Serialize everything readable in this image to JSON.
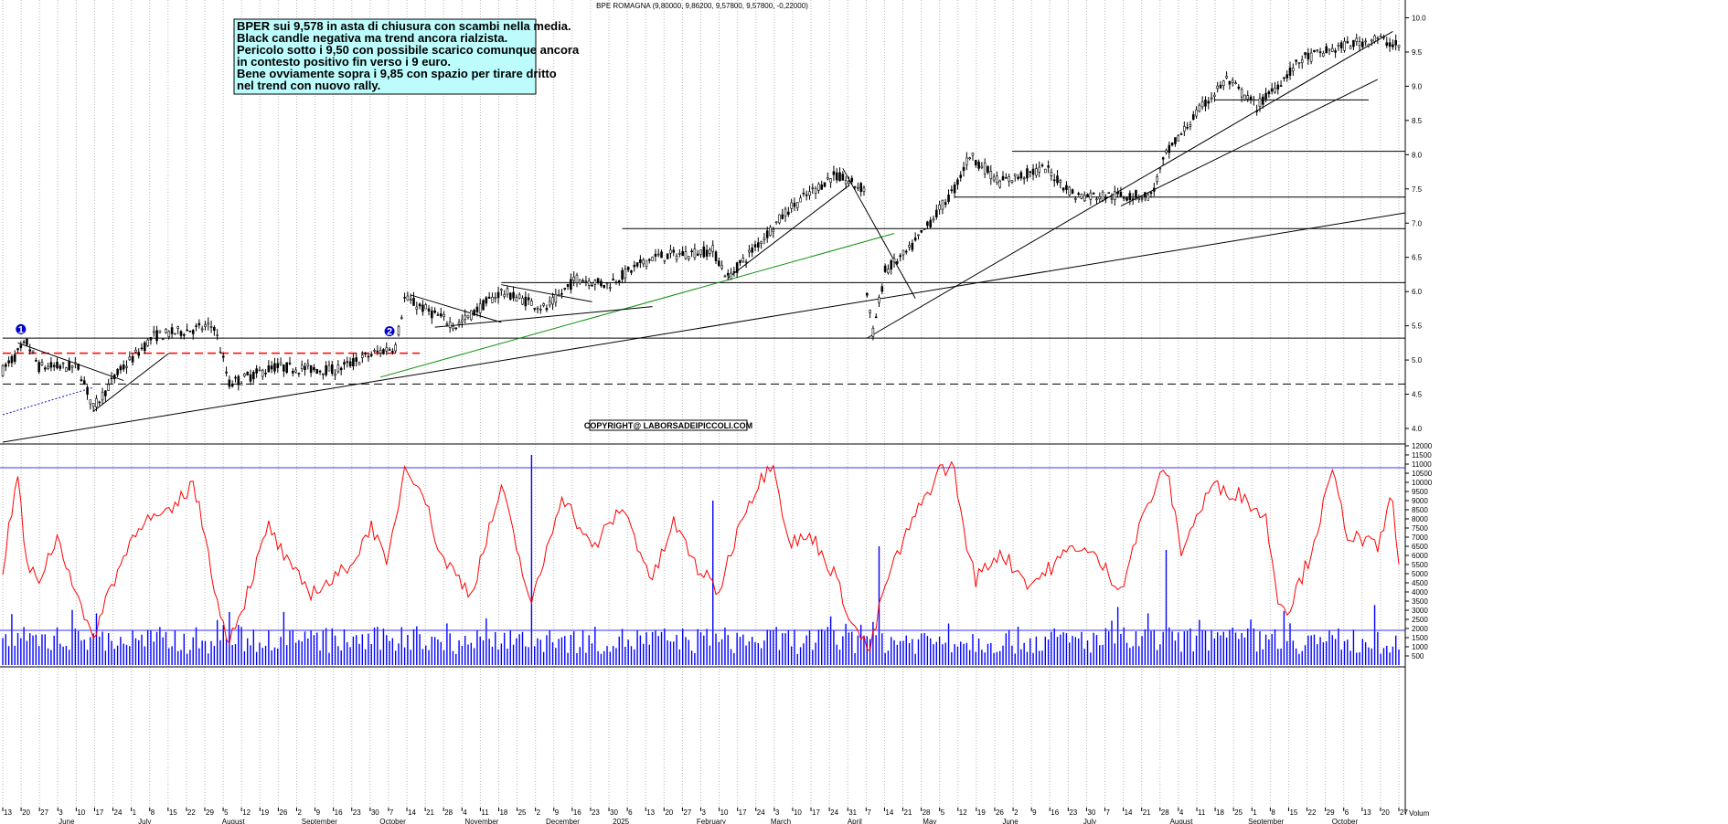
{
  "chart_data": [
    {
      "type": "candlestick",
      "title": "BPE ROMAGNA (9,80000, 9,86200, 9,57800, 9,57800, -0,22000)",
      "ylim": [
        3.8,
        10.1
      ],
      "y_ticks": [
        "4.0",
        "4.5",
        "5.0",
        "5.5",
        "6.0",
        "6.5",
        "7.0",
        "7.5",
        "8.0",
        "8.5",
        "9.0",
        "9.5",
        "10.0"
      ],
      "grid": "vertical dotted",
      "price_path": [
        [
          0,
          4.85
        ],
        [
          8,
          5.25
        ],
        [
          12,
          4.9
        ],
        [
          25,
          4.9
        ],
        [
          30,
          4.3
        ],
        [
          38,
          4.8
        ],
        [
          50,
          5.35
        ],
        [
          70,
          5.5
        ],
        [
          75,
          4.65
        ],
        [
          90,
          4.9
        ],
        [
          110,
          4.85
        ],
        [
          123,
          5.1
        ],
        [
          130,
          5.2
        ],
        [
          133,
          5.9
        ],
        [
          150,
          5.5
        ],
        [
          165,
          6.0
        ],
        [
          180,
          5.75
        ],
        [
          190,
          6.2
        ],
        [
          200,
          6.1
        ],
        [
          215,
          6.5
        ],
        [
          235,
          6.6
        ],
        [
          240,
          6.2
        ],
        [
          260,
          7.2
        ],
        [
          275,
          7.7
        ],
        [
          285,
          7.5
        ],
        [
          280,
          7.7
        ],
        [
          288,
          5.4
        ],
        [
          292,
          6.3
        ],
        [
          300,
          6.6
        ],
        [
          315,
          7.5
        ],
        [
          320,
          8.0
        ],
        [
          330,
          7.6
        ],
        [
          345,
          7.8
        ],
        [
          355,
          7.4
        ],
        [
          380,
          7.4
        ],
        [
          385,
          8.0
        ],
        [
          395,
          8.6
        ],
        [
          405,
          9.1
        ],
        [
          415,
          8.7
        ],
        [
          430,
          9.4
        ],
        [
          445,
          9.6
        ],
        [
          455,
          9.7
        ],
        [
          462,
          9.58
        ]
      ],
      "n_bars": 463,
      "overlays": {
        "horizontal_levels": [
          {
            "y": 5.1,
            "style": "red-dashed"
          },
          {
            "y": 4.65,
            "style": "black-dashed"
          },
          {
            "y": 5.32,
            "style": "black"
          },
          {
            "y": 6.13,
            "style": "black"
          },
          {
            "y": 6.92,
            "style": "black"
          },
          {
            "y": 7.38,
            "style": "black"
          },
          {
            "y": 8.05,
            "style": "black"
          },
          {
            "y": 8.8,
            "style": "black"
          }
        ],
        "trendlines": [
          {
            "p1": [
              0,
              3.8
            ],
            "p2": [
              463,
              7.15
            ],
            "color": "black"
          },
          {
            "p1": [
              125,
              4.75
            ],
            "p2": [
              295,
              6.85
            ],
            "color": "green"
          },
          {
            "p1": [
              0,
              4.2
            ],
            "p2": [
              30,
              4.6
            ],
            "color": "blue-dotted"
          },
          {
            "p1": [
              5,
              5.25
            ],
            "p2": [
              40,
              4.7
            ],
            "color": "black"
          },
          {
            "p1": [
              30,
              4.25
            ],
            "p2": [
              55,
              5.1
            ],
            "color": "black"
          },
          {
            "p1": [
              135,
              5.95
            ],
            "p2": [
              165,
              5.55
            ],
            "color": "black"
          },
          {
            "p1": [
              143,
              5.48
            ],
            "p2": [
              215,
              5.78
            ],
            "color": "black"
          },
          {
            "p1": [
              165,
              6.1
            ],
            "p2": [
              195,
              5.85
            ],
            "color": "black"
          },
          {
            "p1": [
              240,
              6.2
            ],
            "p2": [
              280,
              7.55
            ],
            "color": "black"
          },
          {
            "p1": [
              278,
              7.8
            ],
            "p2": [
              302,
              5.9
            ],
            "color": "black"
          },
          {
            "p1": [
              286,
              5.32
            ],
            "p2": [
              460,
              9.8
            ],
            "color": "black"
          },
          {
            "p1": [
              370,
              7.25
            ],
            "p2": [
              455,
              9.1
            ],
            "color": "black"
          }
        ],
        "markers": [
          {
            "label": "1",
            "x": 6,
            "y": 5.45
          },
          {
            "label": "2",
            "x": 128,
            "y": 5.42
          }
        ]
      }
    },
    {
      "type": "bar+line",
      "ylim": [
        0,
        12000
      ],
      "y_ticks": [
        "500",
        "1000",
        "1500",
        "2000",
        "2500",
        "3000",
        "3500",
        "4000",
        "4500",
        "5000",
        "5500",
        "6000",
        "6500",
        "7000",
        "7500",
        "8000",
        "8500",
        "9000",
        "9500",
        "10000",
        "10500",
        "11000",
        "11500",
        "12000"
      ],
      "levels": [
        10800,
        1900
      ],
      "volume_spikes": [
        [
          175,
          11500
        ],
        [
          235,
          9000
        ],
        [
          290,
          6500
        ],
        [
          385,
          6300
        ]
      ],
      "oscillator_path": [
        [
          0,
          5300
        ],
        [
          5,
          10400
        ],
        [
          8,
          5300
        ],
        [
          12,
          4700
        ],
        [
          18,
          7000
        ],
        [
          22,
          5200
        ],
        [
          28,
          2000
        ],
        [
          30,
          1600
        ],
        [
          35,
          4000
        ],
        [
          45,
          7800
        ],
        [
          55,
          8200
        ],
        [
          63,
          10000
        ],
        [
          68,
          6300
        ],
        [
          72,
          2500
        ],
        [
          75,
          1500
        ],
        [
          80,
          3500
        ],
        [
          88,
          7600
        ],
        [
          95,
          5300
        ],
        [
          102,
          4000
        ],
        [
          110,
          4700
        ],
        [
          118,
          6200
        ],
        [
          122,
          7800
        ],
        [
          127,
          5300
        ],
        [
          133,
          10800
        ],
        [
          138,
          10000
        ],
        [
          145,
          6000
        ],
        [
          155,
          3900
        ],
        [
          165,
          9700
        ],
        [
          175,
          3200
        ],
        [
          185,
          9400
        ],
        [
          195,
          6300
        ],
        [
          205,
          8700
        ],
        [
          215,
          4600
        ],
        [
          222,
          7800
        ],
        [
          230,
          5300
        ],
        [
          237,
          4000
        ],
        [
          245,
          8400
        ],
        [
          255,
          11300
        ],
        [
          260,
          6700
        ],
        [
          268,
          7000
        ],
        [
          275,
          5000
        ],
        [
          282,
          2000
        ],
        [
          287,
          800
        ],
        [
          292,
          4400
        ],
        [
          300,
          7500
        ],
        [
          310,
          10700
        ],
        [
          315,
          10800
        ],
        [
          318,
          7200
        ],
        [
          322,
          4700
        ],
        [
          330,
          6200
        ],
        [
          340,
          4400
        ],
        [
          348,
          5500
        ],
        [
          355,
          6600
        ],
        [
          362,
          5800
        ],
        [
          370,
          4200
        ],
        [
          378,
          8500
        ],
        [
          385,
          10800
        ],
        [
          390,
          6300
        ],
        [
          400,
          9800
        ],
        [
          410,
          9300
        ],
        [
          418,
          8000
        ],
        [
          422,
          3800
        ],
        [
          425,
          2900
        ],
        [
          432,
          5700
        ],
        [
          440,
          10500
        ],
        [
          445,
          7200
        ],
        [
          455,
          6400
        ],
        [
          460,
          9400
        ],
        [
          462,
          5300
        ]
      ]
    }
  ],
  "x_axis": {
    "day_ticks": [
      "13",
      "20",
      "27",
      "3",
      "10",
      "17",
      "24",
      "1",
      "8",
      "15",
      "22",
      "29",
      "5",
      "12",
      "19",
      "26",
      "2",
      "9",
      "16",
      "23",
      "30",
      "7",
      "14",
      "21",
      "28",
      "4",
      "11",
      "18",
      "25",
      "2",
      "9",
      "16",
      "23",
      "30",
      "6",
      "13",
      "20",
      "27",
      "3",
      "10",
      "17",
      "24",
      "3",
      "10",
      "17",
      "24",
      "31",
      "7",
      "14",
      "21",
      "28",
      "5",
      "12",
      "19",
      "26",
      "2",
      "9",
      "16",
      "23",
      "30",
      "7",
      "14",
      "21",
      "28",
      "4",
      "11",
      "18",
      "25",
      "1",
      "8",
      "15",
      "22",
      "29",
      "6",
      "13",
      "20",
      "27"
    ],
    "month_labels": [
      {
        "label": "June",
        "t": 0.04
      },
      {
        "label": "July",
        "t": 0.097
      },
      {
        "label": "August",
        "t": 0.157
      },
      {
        "label": "September",
        "t": 0.214
      },
      {
        "label": "October",
        "t": 0.27
      },
      {
        "label": "November",
        "t": 0.331
      },
      {
        "label": "December",
        "t": 0.389
      },
      {
        "label": "2025",
        "t": 0.437
      },
      {
        "label": "February",
        "t": 0.497
      },
      {
        "label": "March",
        "t": 0.55
      },
      {
        "label": "April",
        "t": 0.605
      },
      {
        "label": "May",
        "t": 0.659
      },
      {
        "label": "June",
        "t": 0.716
      },
      {
        "label": "July",
        "t": 0.774
      },
      {
        "label": "August",
        "t": 0.836
      },
      {
        "label": "September",
        "t": 0.892
      },
      {
        "label": "October",
        "t": 0.952
      }
    ],
    "corner_label": "Volum"
  },
  "annotation": {
    "lines": [
      "BPER sui 9,578 in asta di chiusura con scambi nella media.",
      "Black candle negativa ma trend ancora rialzista.",
      "Pericolo sotto i 9,50 con possibile scarico comunque ancora",
      "in contesto positivo fin verso i 9 euro.",
      "Bene ovviamente sopra i 9,85 con spazio per tirare dritto",
      "nel trend con nuovo rally."
    ],
    "background": "#bdfcfc"
  },
  "copyright": "COPYRIGHT@ LABORSADEIPICCOLI.COM",
  "colors": {
    "candle": "#000000",
    "oscillator": "#ff0000",
    "volume": "#0000ff",
    "level_blue": "#3333ff",
    "green_line": "#109010",
    "red_dash": "#ff0000"
  }
}
